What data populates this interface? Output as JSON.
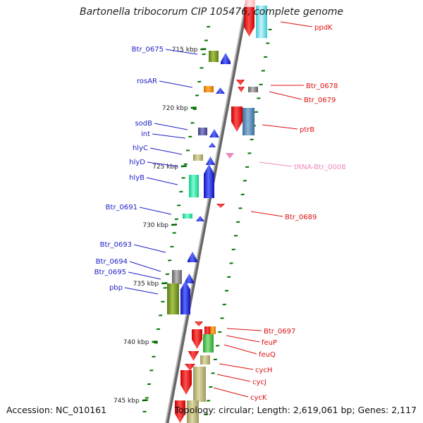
{
  "title": "Bartonella tribocorum CIP 105476, complete genome",
  "accession": "Accession: NC_010161",
  "topology": "Topology: circular; Length: 2,619,061 bp; Genes: 2,117",
  "colors": {
    "left_label": "#1e1ec8",
    "right_label": "#dd1111",
    "trna_label": "#ee88bb",
    "tick": "#007700",
    "backbone": "#888888"
  },
  "kbp_labels": [
    {
      "kbp": 715,
      "text": "715 kbp"
    },
    {
      "kbp": 720,
      "text": "720 kbp"
    },
    {
      "kbp": 725,
      "text": "725 kbp"
    },
    {
      "kbp": 730,
      "text": "730 kbp"
    },
    {
      "kbp": 735,
      "text": "735 kbp"
    },
    {
      "kbp": 740,
      "text": "740 kbp"
    },
    {
      "kbp": 745,
      "text": "745 kbp"
    }
  ],
  "left_genes": [
    {
      "name": "Btr_0675"
    },
    {
      "name": "rosAR"
    },
    {
      "name": "sodB"
    },
    {
      "name": "int"
    },
    {
      "name": "hlyC"
    },
    {
      "name": "hlyD"
    },
    {
      "name": "hlyB"
    },
    {
      "name": "Btr_0691"
    },
    {
      "name": "Btr_0693"
    },
    {
      "name": "Btr_0694"
    },
    {
      "name": "Btr_0695"
    },
    {
      "name": "pbp"
    }
  ],
  "right_genes": [
    {
      "name": "ppdK"
    },
    {
      "name": "Btr_0678"
    },
    {
      "name": "Btr_0679"
    },
    {
      "name": "ptrB"
    },
    {
      "name": "tRNA-Btr_0008"
    },
    {
      "name": "Btr_0689"
    },
    {
      "name": "Btr_0697"
    },
    {
      "name": "feuP"
    },
    {
      "name": "feuQ"
    },
    {
      "name": "cycH"
    },
    {
      "name": "cycJ"
    },
    {
      "name": "cycK"
    }
  ]
}
